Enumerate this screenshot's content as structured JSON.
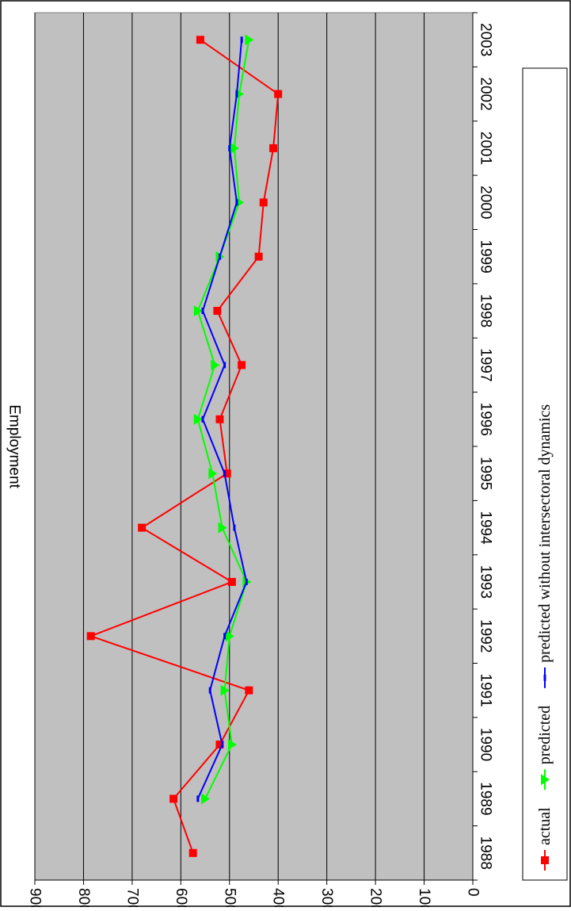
{
  "chart_data": {
    "type": "line",
    "title": "",
    "xlabel": "",
    "ylabel": "Employment",
    "ylim": [
      0,
      9000
    ],
    "yticks": [
      0,
      1000,
      2000,
      3000,
      4000,
      5000,
      6000,
      7000,
      8000,
      9000
    ],
    "categories": [
      "1988",
      "1989",
      "1990",
      "1991",
      "1992",
      "1993",
      "1994",
      "1995",
      "1996",
      "1997",
      "1998",
      "1999",
      "2000",
      "2001",
      "2002",
      "2003"
    ],
    "grid": true,
    "legend_position": "bottom",
    "colors": {
      "plot_background": "#c0c0c0",
      "actual": "#ff0000",
      "predicted": "#00ff00",
      "predicted_no_dynamics": "#0000ff"
    },
    "series": [
      {
        "name": "actual",
        "marker": "square",
        "values": [
          5750,
          6150,
          5200,
          4600,
          7850,
          4950,
          6800,
          5050,
          5200,
          4750,
          5250,
          4400,
          4300,
          4100,
          4000,
          5600
        ]
      },
      {
        "name": "predicted",
        "marker": "triangle",
        "values": [
          null,
          5500,
          4950,
          5100,
          5000,
          4650,
          5150,
          5350,
          5650,
          5300,
          5650,
          5200,
          4800,
          4900,
          4800,
          4600
        ]
      },
      {
        "name": "predicted without intersectoral dynamics",
        "marker": "dash",
        "values": [
          null,
          5650,
          5150,
          5400,
          5100,
          4650,
          4900,
          5100,
          5550,
          5100,
          5550,
          5200,
          4850,
          5000,
          4850,
          4750
        ]
      }
    ]
  }
}
